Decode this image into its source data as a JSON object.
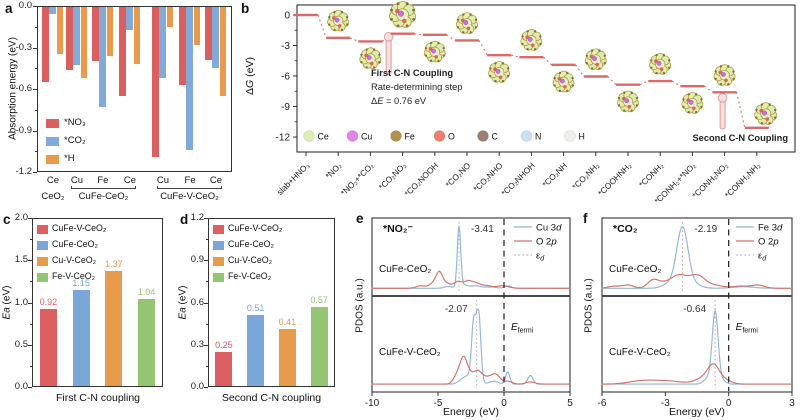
{
  "figure": {
    "background": "#ffffff"
  },
  "chart_data": [
    {
      "panel_label": "a",
      "type": "bar",
      "ylabel": "Absorption energy (eV)",
      "ylim": [
        -1.2,
        0.0
      ],
      "yticks": [
        "0.0",
        "-0.3",
        "-0.6",
        "-0.9",
        "-1.2"
      ],
      "legend": [
        {
          "label": "*NO₃",
          "color": "#dc5f5f"
        },
        {
          "label": "*CO₂",
          "color": "#82aad9"
        },
        {
          "label": "*H",
          "color": "#e89b4d"
        }
      ],
      "groups": [
        {
          "site": "Ce",
          "values": [
            -0.55,
            -0.06,
            -0.35
          ]
        },
        {
          "site": "Cu",
          "values": [
            -0.46,
            -0.43,
            -0.52
          ]
        },
        {
          "site": "Fe",
          "values": [
            -0.4,
            -0.73,
            -0.36
          ]
        },
        {
          "site": "Ce",
          "values": [
            -0.65,
            -0.17,
            -0.42
          ]
        },
        {
          "site": "Cu",
          "values": [
            -1.09,
            -0.52,
            -0.15
          ]
        },
        {
          "site": "Fe",
          "values": [
            -0.57,
            -1.04,
            -0.28
          ]
        },
        {
          "site": "Ce",
          "values": [
            -0.39,
            -0.45,
            -0.65
          ]
        }
      ],
      "group_brackets": [
        {
          "label": "CeO₂",
          "from": 0,
          "to": 0
        },
        {
          "label": "CuFe-CeO₂",
          "from": 1,
          "to": 3
        },
        {
          "label": "CuFe-V-CeO₂",
          "from": 4,
          "to": 6
        }
      ]
    },
    {
      "panel_label": "b",
      "type": "reaction-step-diagram",
      "ylabel": "ΔG (eV)",
      "ylim": [
        -12,
        0
      ],
      "yticks": [
        "0",
        "-3",
        "-6",
        "-9",
        "-12"
      ],
      "step_color": "#d96a68",
      "steps": [
        {
          "label": "slab+HNO₃",
          "dG": 0
        },
        {
          "label": "*NO₂",
          "dG": -2.25
        },
        {
          "label": "*NO₂+*CO₂",
          "dG": -2.6
        },
        {
          "label": "*CO₂NO₂",
          "dG": -1.84
        },
        {
          "label": "*CO₂NOOH",
          "dG": -1.95
        },
        {
          "label": "*CO₂NO",
          "dG": -2.5
        },
        {
          "label": "*CO₂NHO",
          "dG": -3.95
        },
        {
          "label": "*CO₂NHOH",
          "dG": -4.15
        },
        {
          "label": "*CO₂NH",
          "dG": -4.9
        },
        {
          "label": "*CO₂NH₂",
          "dG": -6.05
        },
        {
          "label": "*COOHNH₂",
          "dG": -6.85
        },
        {
          "label": "*CONH₂",
          "dG": -6.5
        },
        {
          "label": "*CONH₂+*NO₂",
          "dG": -7.0
        },
        {
          "label": "*CONH₂NO₂",
          "dG": -7.6
        },
        {
          "label": "*CONH₂NH₂",
          "dG": -11.1
        }
      ],
      "molecule_sides": [
        "above",
        "below",
        "above",
        "below",
        "above",
        "below",
        "above",
        "below",
        "above",
        "below",
        "above",
        "below",
        "above",
        "above"
      ],
      "annotations": {
        "first_line1": "First C-N Coupling",
        "first_line2": "Rate-determining step",
        "first_line3": "ΔE = 0.76 eV",
        "second": "Second C-N Coupling"
      },
      "atom_legend": [
        {
          "label": "Ce",
          "color": "#ddeeb2"
        },
        {
          "label": "Cu",
          "color": "#e184ea"
        },
        {
          "label": "Fe",
          "color": "#b3914f"
        },
        {
          "label": "O",
          "color": "#ee7f6e"
        },
        {
          "label": "C",
          "color": "#9b7f72"
        },
        {
          "label": "N",
          "color": "#ccdff5"
        },
        {
          "label": "H",
          "color": "#efefec"
        }
      ]
    },
    {
      "panel_label": "c",
      "type": "bar",
      "ylabel_em": "Ea",
      "ylabel_unit": " (eV)",
      "caption": "First C-N coupling",
      "ylim": [
        0,
        2.0
      ],
      "yticks": [
        "0.0",
        "0.5",
        "1.0",
        "1.5",
        "2.0"
      ],
      "bars": [
        {
          "label": "CuFe-V-CeO₂",
          "value": 0.92,
          "color": "#dc5f62"
        },
        {
          "label": "CuFe-CeO₂",
          "value": 1.15,
          "color": "#7ba7d8"
        },
        {
          "label": "Cu-V-CeO₂",
          "value": 1.37,
          "color": "#e89b4d"
        },
        {
          "label": "Fe-V-CeO₂",
          "value": 1.04,
          "color": "#93c572"
        }
      ]
    },
    {
      "panel_label": "d",
      "type": "bar",
      "ylabel_em": "Ea",
      "ylabel_unit": " (eV)",
      "caption": "Second C-N coupling",
      "ylim": [
        0,
        1.2
      ],
      "yticks": [
        "0.0",
        "0.3",
        "0.6",
        "0.9",
        "1.2"
      ],
      "bars": [
        {
          "label": "CuFe-V-CeO₂",
          "value": 0.25,
          "color": "#dc5f62"
        },
        {
          "label": "CuFe-CeO₂",
          "value": 0.51,
          "color": "#7ba7d8"
        },
        {
          "label": "Cu-V-CeO₂",
          "value": 0.41,
          "color": "#e89b4d"
        },
        {
          "label": "Fe-V-CeO₂",
          "value": 0.57,
          "color": "#93c572"
        }
      ]
    },
    {
      "panel_label": "e",
      "type": "pdos",
      "xlabel": "Energy (eV)",
      "ylabel": "PDOS (a.u.)",
      "xlim": [
        -10,
        5
      ],
      "xticks": [
        "-10",
        "-5",
        "0",
        "5"
      ],
      "adsorbate": "*NO₂⁻",
      "fermi_label": {
        "base": "E",
        "sub": "fermi"
      },
      "fermi_x": 0,
      "ed_line_color": "#b6bcc4",
      "legend": [
        {
          "label": "Cu 3d",
          "color": "#92b5d8",
          "style": "solid"
        },
        {
          "label": "O 2p",
          "color": "#d4716e",
          "style": "solid"
        },
        {
          "label": "εd",
          "base": "ε",
          "sub": "d",
          "color": "#b6b6b6",
          "style": "dotted"
        }
      ],
      "subpanels": [
        {
          "name": "CuFe-CeO₂",
          "ed": -3.41,
          "ed_label": "-3.41",
          "ed_label_side": "right",
          "curves": [
            {
              "series": "Cu 3d",
              "color": "#92b5d8",
              "peaks": [
                [
                  -3.41,
                  0.13,
                  1
                ],
                [
                  -3.05,
                  0.25,
                  0.05
                ],
                [
                  -4.2,
                  0.3,
                  0.03
                ],
                [
                  -2.2,
                  0.45,
                  0.04
                ],
                [
                  0.3,
                  0.25,
                  0.04
                ],
                [
                  -1,
                  0.4,
                  0.02
                ]
              ]
            },
            {
              "series": "O 2p",
              "color": "#d4716e",
              "peaks": [
                [
                  -4.9,
                  0.24,
                  0.23
                ],
                [
                  -5.35,
                  0.3,
                  0.08
                ],
                [
                  -4.35,
                  0.35,
                  0.08
                ],
                [
                  -3.5,
                  0.28,
                  0.1
                ],
                [
                  -2.75,
                  0.35,
                  0.11
                ],
                [
                  -2.1,
                  0.35,
                  0.07
                ],
                [
                  -1.3,
                  0.4,
                  0.04
                ],
                [
                  -0.1,
                  0.45,
                  0.04
                ],
                [
                  -6.3,
                  0.35,
                  0.04
                ]
              ]
            }
          ]
        },
        {
          "name": "CuFe-V-CeO₂",
          "ed": -2.07,
          "ed_label": "-2.07",
          "ed_label_side": "left",
          "show_fermi_label": true,
          "curves": [
            {
              "series": "Cu 3d",
              "color": "#92b5d8",
              "peaks": [
                [
                  -2.3,
                  0.16,
                  0.8
                ],
                [
                  -1.93,
                  0.17,
                  1
                ],
                [
                  -2.7,
                  0.3,
                  0.1
                ],
                [
                  -3.2,
                  0.3,
                  0.05
                ],
                [
                  0.28,
                  0.16,
                  0.17
                ],
                [
                  2,
                  0.2,
                  0.12
                ],
                [
                  -0.8,
                  0.35,
                  0.04
                ]
              ]
            },
            {
              "series": "O 2p",
              "color": "#d4716e",
              "peaks": [
                [
                  -3.05,
                  0.27,
                  0.35
                ],
                [
                  -3.55,
                  0.28,
                  0.12
                ],
                [
                  -2.55,
                  0.25,
                  0.1
                ],
                [
                  -2,
                  0.3,
                  0.17
                ],
                [
                  -1.45,
                  0.3,
                  0.07
                ],
                [
                  -0.9,
                  0.3,
                  0.09
                ],
                [
                  -0.5,
                  0.28,
                  0.09
                ],
                [
                  0.3,
                  0.3,
                  0.04
                ],
                [
                  2,
                  0.35,
                  0.03
                ]
              ]
            }
          ]
        }
      ]
    },
    {
      "panel_label": "f",
      "type": "pdos",
      "xlabel": "Energy (eV)",
      "ylabel": "PDOS (a.u.)",
      "xlim": [
        -6,
        3
      ],
      "xticks": [
        "-6",
        "-3",
        "0",
        "3"
      ],
      "adsorbate": "*CO₂",
      "fermi_label": {
        "base": "E",
        "sub": "fermi"
      },
      "fermi_x": 0,
      "ed_line_color": "#dfa09c",
      "legend": [
        {
          "label": "Fe 3d",
          "color": "#92b5d8",
          "style": "solid"
        },
        {
          "label": "O 2p",
          "color": "#d4716e",
          "style": "solid"
        },
        {
          "label": "εd",
          "base": "ε",
          "sub": "d",
          "color": "#b6b6b6",
          "style": "dotted"
        }
      ],
      "subpanels": [
        {
          "name": "CuFe-CeO₂",
          "ed": -2.19,
          "ed_label": "-2.19",
          "ed_label_side": "right",
          "curves": [
            {
              "series": "Fe 3d",
              "color": "#92b5d8",
              "peaks": [
                [
                  -2.19,
                  0.27,
                  1
                ],
                [
                  -2.85,
                  0.3,
                  0.07
                ],
                [
                  -1.55,
                  0.3,
                  0.05
                ],
                [
                  0.7,
                  0.5,
                  0.025
                ]
              ]
            },
            {
              "series": "O 2p",
              "color": "#d4716e",
              "peaks": [
                [
                  -4.75,
                  0.25,
                  0.05
                ],
                [
                  -3.6,
                  0.25,
                  0.12
                ],
                [
                  -3.15,
                  0.3,
                  0.07
                ],
                [
                  -2.45,
                  0.35,
                  0.18
                ],
                [
                  -1.75,
                  0.4,
                  0.15
                ],
                [
                  -1.35,
                  0.3,
                  0.1
                ],
                [
                  -0.7,
                  0.4,
                  0.05
                ],
                [
                  0.55,
                  0.4,
                  0.035
                ],
                [
                  1.4,
                  0.3,
                  0.05
                ],
                [
                  -5.4,
                  0.3,
                  0.035
                ]
              ]
            }
          ]
        },
        {
          "name": "CuFe-V-CeO₂",
          "ed": -0.64,
          "ed_label": "-0.64",
          "ed_label_side": "left",
          "show_fermi_label": true,
          "curves": [
            {
              "series": "Fe 3d",
              "color": "#92b5d8",
              "peaks": [
                [
                  -0.64,
                  0.14,
                  1
                ],
                [
                  -1,
                  0.18,
                  0.08
                ],
                [
                  -0.32,
                  0.18,
                  0.05
                ]
              ]
            },
            {
              "series": "O 2p",
              "color": "#d4716e",
              "peaks": [
                [
                  -0.72,
                  0.28,
                  0.25
                ],
                [
                  -1.25,
                  0.35,
                  0.07
                ],
                [
                  -3,
                  0.8,
                  0.045
                ],
                [
                  -4.2,
                  0.6,
                  0.035
                ],
                [
                  -0.15,
                  0.3,
                  0.05
                ]
              ]
            }
          ]
        }
      ]
    }
  ]
}
